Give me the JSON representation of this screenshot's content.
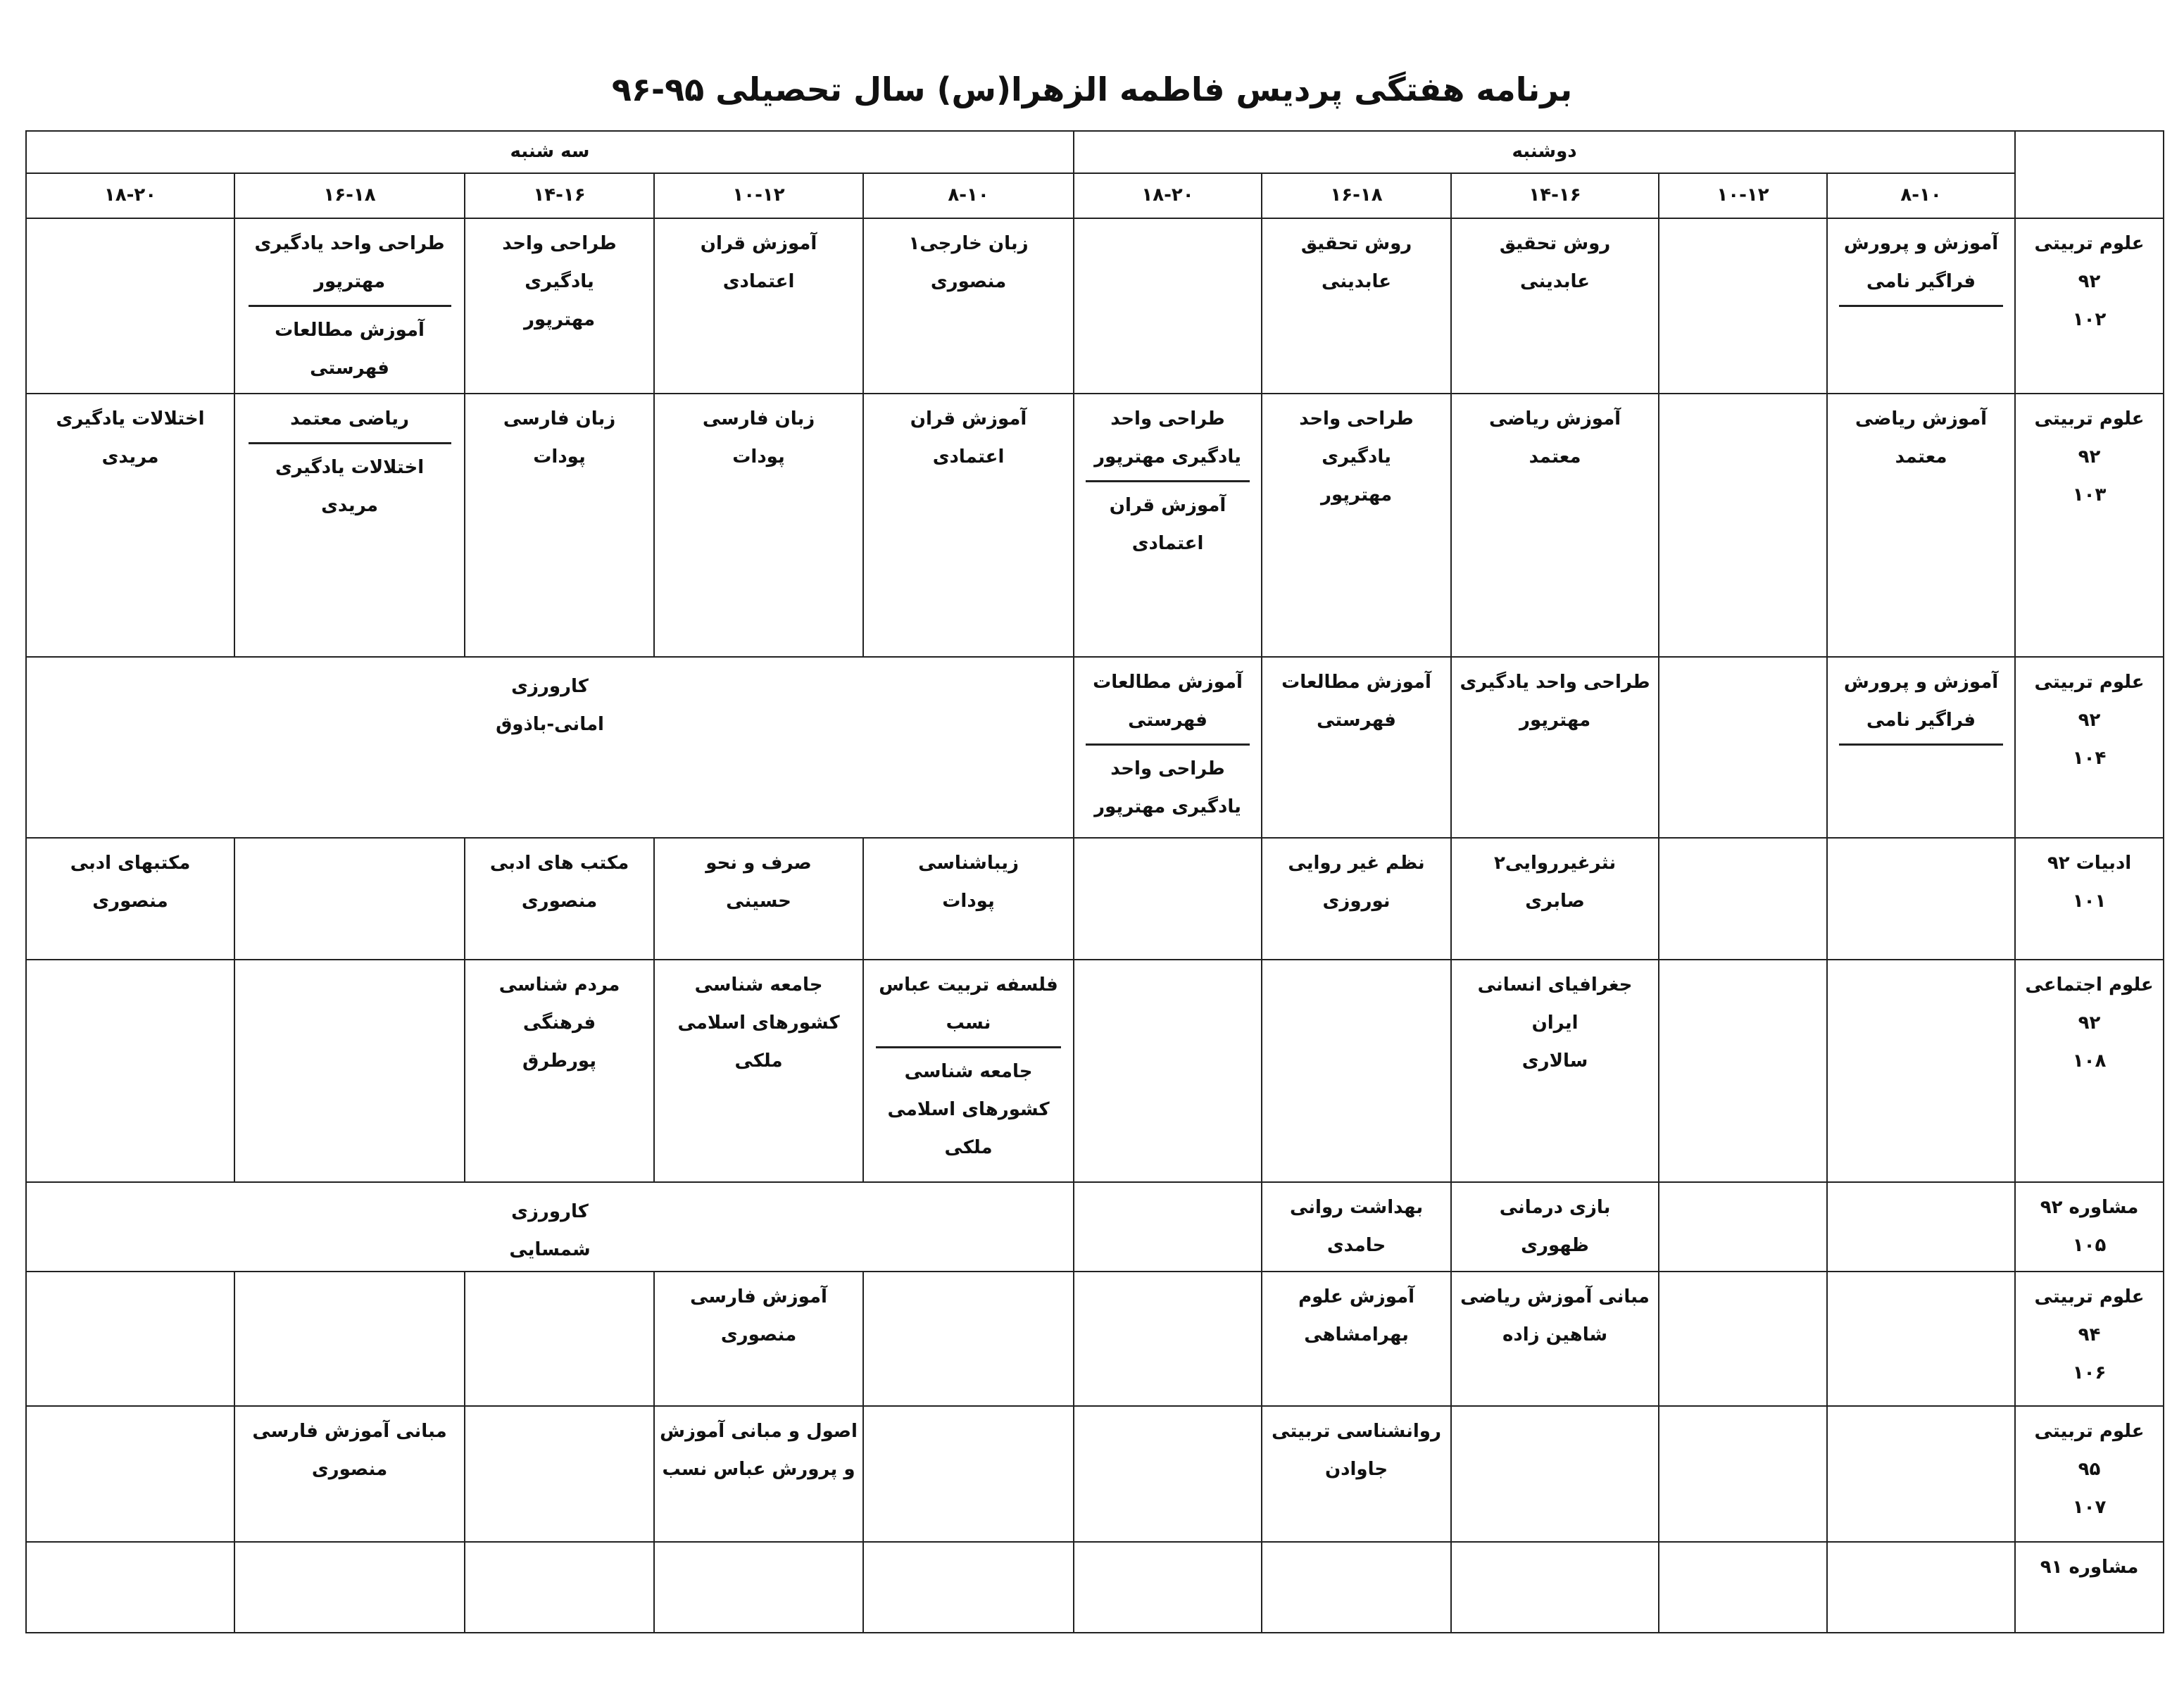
{
  "title": "برنامه هفتگی پردیس فاطمه الزهرا(س) سال تحصیلی ۹۵-۹۶",
  "days": [
    {
      "name": "دوشنبه",
      "times": [
        "۸-۱۰",
        "۱۰-۱۲",
        "۱۴-۱۶",
        "۱۶-۱۸",
        "۱۸-۲۰"
      ]
    },
    {
      "name": "سه شنبه",
      "times": [
        "۸-۱۰",
        "۱۰-۱۲",
        "۱۴-۱۶",
        "۱۶-۱۸",
        "۱۸-۲۰"
      ]
    }
  ],
  "rows": [
    {
      "label": [
        "علوم تربیتی",
        "۹۲",
        "۱۰۲"
      ],
      "days": [
        [
          [
            [
              "آموزش و پرورش",
              "فراگیر نامی"
            ],
            []
          ],
          [],
          [
            [
              "روش تحقیق",
              "عابدینی"
            ]
          ],
          [
            [
              "روش تحقیق",
              "عابدینی"
            ]
          ],
          []
        ],
        [
          [
            [
              "زبان خارجی۱",
              "منصوری"
            ]
          ],
          [
            [
              "آموزش قران",
              "اعتمادی"
            ]
          ],
          [
            [
              "طراحی واحد",
              "یادگیری",
              "مهترپور"
            ]
          ],
          [
            [
              "طراحی واحد یادگیری",
              "مهترپور"
            ],
            [
              "آموزش مطالعات فهرستی"
            ]
          ],
          []
        ]
      ]
    },
    {
      "label": [
        "علوم تربیتی",
        "۹۲",
        "۱۰۳"
      ],
      "days": [
        [
          [
            [
              "آموزش ریاضی",
              "معتمد"
            ]
          ],
          [],
          [
            [
              "آموزش ریاضی",
              "معتمد"
            ]
          ],
          [
            [
              "طراحی واحد",
              "یادگیری",
              "مهترپور"
            ]
          ],
          [
            [
              "طراحی واحد",
              "یادگیری مهترپور"
            ],
            [
              "آموزش قران",
              "اعتمادی"
            ]
          ]
        ],
        [
          [
            [
              "آموزش قران",
              "اعتمادی"
            ]
          ],
          [
            [
              "زبان فارسی",
              "پودات"
            ]
          ],
          [
            [
              "زبان فارسی",
              "پودات"
            ]
          ],
          [
            [
              "ریاضی معتمد"
            ],
            [
              "اختلالات یادگیری",
              "مریدی"
            ]
          ],
          [
            [
              "اختلالات یادگیری",
              "مریدی"
            ]
          ]
        ]
      ]
    },
    {
      "label": [
        "علوم تربیتی",
        "۹۲",
        "۱۰۴"
      ],
      "days": [
        [
          [
            [
              "آموزش و پرورش",
              "فراگیر نامی"
            ],
            []
          ],
          [],
          [
            [
              "طراحی واحد یادگیری",
              "مهترپور"
            ]
          ],
          [
            [
              "آموزش مطالعات",
              "فهرستی"
            ]
          ],
          [
            [
              "آموزش مطالعات",
              "فهرستی"
            ],
            [
              "طراحی واحد",
              "یادگیری مهترپور"
            ]
          ]
        ],
        {
          "all_day": [
            [
              "کارورزی",
              "امانی-باذوق"
            ]
          ]
        }
      ]
    },
    {
      "label": [
        "ادبیات ۹۲",
        "۱۰۱"
      ],
      "days": [
        [
          [],
          [],
          [
            [
              "نثرغیرروایی۲",
              "صابری"
            ]
          ],
          [
            [
              "نظم غیر روایی",
              "نوروزی"
            ]
          ],
          []
        ],
        [
          [
            [
              "زیباشناسی",
              "پودات"
            ]
          ],
          [
            [
              "صرف و نحو",
              "حسینی"
            ]
          ],
          [
            [
              "مکتب های ادبی",
              "منصوری"
            ]
          ],
          [],
          [
            [
              "مکتبهای ادبی",
              "منصوری"
            ]
          ]
        ]
      ]
    },
    {
      "label": [
        "علوم اجتماعی",
        "۹۲",
        "۱۰۸"
      ],
      "days": [
        [
          [],
          [],
          [
            [
              "جغرافیای انسانی ایران",
              "سالاری"
            ]
          ],
          [],
          []
        ],
        [
          [
            [
              "فلسفه تربیت عباس",
              "نسب"
            ],
            [
              "جامعه شناسی",
              "کشورهای اسلامی",
              "ملکی"
            ]
          ],
          [
            [
              "جامعه شناسی",
              "کشورهای اسلامی",
              "ملکی"
            ]
          ],
          [
            [
              "مردم شناسی",
              "فرهنگی",
              "پورطرق"
            ]
          ],
          [],
          []
        ]
      ]
    },
    {
      "label": [
        "مشاوره ۹۲",
        "۱۰۵"
      ],
      "days": [
        [
          [],
          [],
          [
            [
              "بازی درمانی",
              "ظهوری"
            ]
          ],
          [
            [
              "بهداشت روانی",
              "حامدی"
            ]
          ],
          []
        ],
        {
          "all_day": [
            [
              "کارورزی",
              "شمسایی"
            ]
          ]
        }
      ]
    },
    {
      "label": [
        "علوم تربیتی",
        "۹۴",
        "۱۰۶"
      ],
      "days": [
        [
          [],
          [],
          [
            [
              "مبانی آموزش ریاضی",
              "شاهین زاده"
            ]
          ],
          [
            [
              "آموزش علوم",
              "بهرامشاهی"
            ]
          ],
          []
        ],
        [
          [],
          [
            [
              "آموزش فارسی",
              "منصوری"
            ]
          ],
          [],
          [],
          []
        ]
      ]
    },
    {
      "label": [
        "علوم تربیتی",
        "۹۵",
        "۱۰۷"
      ],
      "days": [
        [
          [],
          [],
          [],
          [
            [
              "روانشناسی تربیتی",
              "جاوادن"
            ]
          ],
          []
        ],
        [
          [],
          [
            [
              "اصول و مبانی آموزش",
              "و پرورش عباس نسب"
            ]
          ],
          [],
          [
            [
              "مبانی آموزش فارسی",
              "منصوری"
            ]
          ],
          []
        ]
      ]
    },
    {
      "label": [
        "مشاوره ۹۱"
      ],
      "days": [
        [
          [],
          [],
          [],
          [],
          []
        ],
        [
          [],
          [],
          [],
          [],
          []
        ]
      ]
    }
  ]
}
